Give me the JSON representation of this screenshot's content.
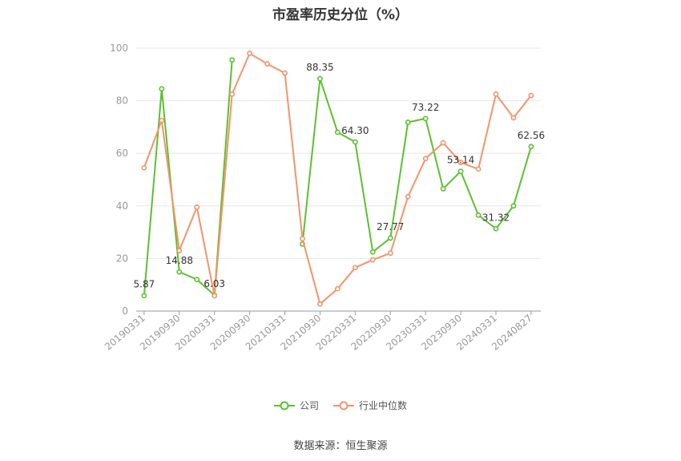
{
  "chart_data": {
    "type": "line",
    "title": "市盈率历史分位（%）",
    "xlabel": "",
    "ylabel": "",
    "ylim": [
      0,
      100
    ],
    "yticks": [
      0,
      20,
      40,
      60,
      80,
      100
    ],
    "x_tick_labels": [
      "20190331",
      "20190930",
      "20200331",
      "20200930",
      "20210331",
      "20210930",
      "20220331",
      "20220930",
      "20230331",
      "20230930",
      "20240331",
      "20240827"
    ],
    "x": [
      "20190331",
      "20190630",
      "20190930",
      "20191231",
      "20200331",
      "20200630",
      "20200930",
      "20201231",
      "20210331",
      "20210630",
      "20210930",
      "20211231",
      "20220331",
      "20220630",
      "20220930",
      "20221231",
      "20230331",
      "20230630",
      "20230930",
      "20231231",
      "20240331",
      "20240630",
      "20240827"
    ],
    "grid": true,
    "legend_position": "bottom",
    "series": [
      {
        "name": "公司",
        "color": "#5cc12e",
        "values": [
          5.87,
          84.5,
          14.88,
          12.0,
          6.03,
          95.5,
          null,
          null,
          null,
          25.5,
          88.35,
          68.0,
          64.3,
          22.5,
          27.77,
          71.8,
          73.22,
          46.5,
          53.14,
          36.5,
          31.32,
          40.0,
          62.56
        ]
      },
      {
        "name": "行业中位数",
        "color": "#f4936b",
        "values": [
          54.5,
          72.5,
          23.0,
          39.5,
          5.8,
          82.5,
          98.0,
          94.0,
          90.5,
          27.5,
          2.7,
          8.5,
          16.5,
          19.5,
          22.0,
          43.5,
          58.0,
          64.0,
          56.5,
          54.0,
          82.5,
          73.5,
          82.0
        ]
      }
    ],
    "data_labels": [
      {
        "series": 0,
        "index": 0,
        "text": "5.87"
      },
      {
        "series": 0,
        "index": 2,
        "text": "14.88"
      },
      {
        "series": 0,
        "index": 4,
        "text": "6.03"
      },
      {
        "series": 0,
        "index": 10,
        "text": "88.35"
      },
      {
        "series": 0,
        "index": 12,
        "text": "64.30"
      },
      {
        "series": 0,
        "index": 14,
        "text": "27.77"
      },
      {
        "series": 0,
        "index": 16,
        "text": "73.22"
      },
      {
        "series": 0,
        "index": 18,
        "text": "53.14"
      },
      {
        "series": 0,
        "index": 20,
        "text": "31.32"
      },
      {
        "series": 0,
        "index": 22,
        "text": "62.56"
      }
    ]
  },
  "source_text": "数据来源：恒生聚源"
}
